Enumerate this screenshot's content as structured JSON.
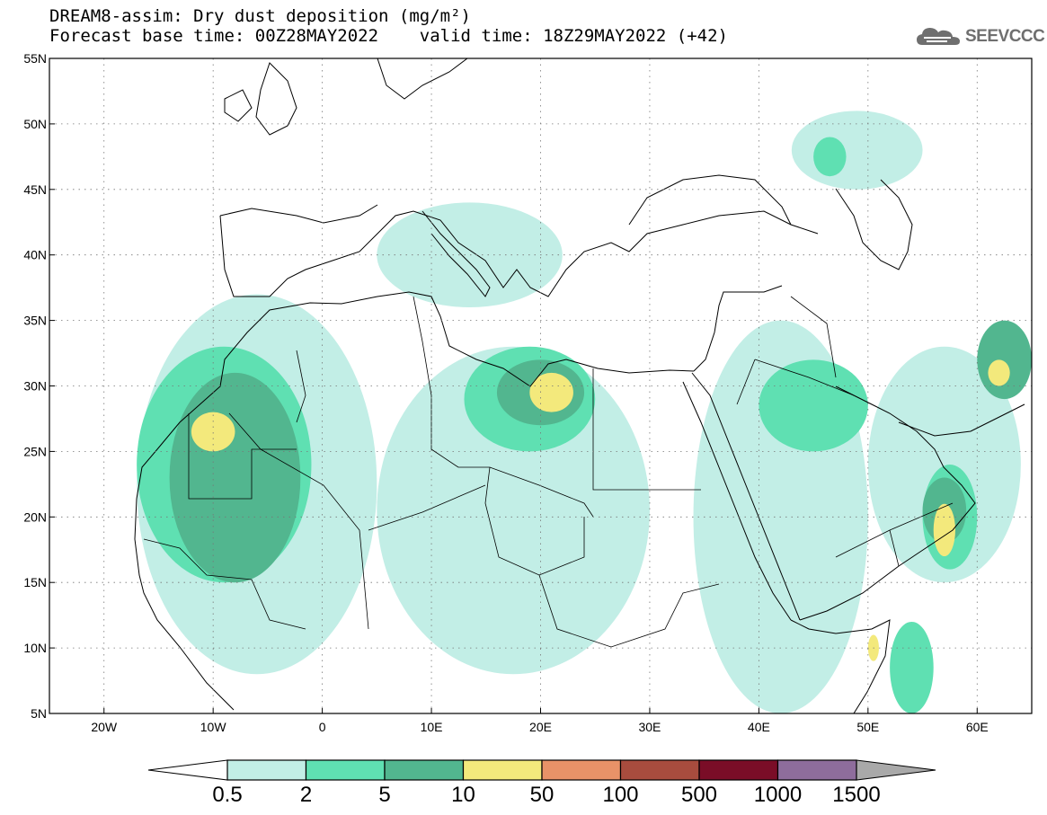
{
  "header": {
    "title_line1": "DREAM8-assim: Dry dust deposition (mg/m²)",
    "title_line2": "Forecast base time: 00Z28MAY2022    valid time: 18Z29MAY2022 (+42)",
    "logo_text": "SEEVCCC",
    "logo_icon": "cloud-icon"
  },
  "map": {
    "projection": "lat-lon",
    "lon_range": [
      -25,
      65
    ],
    "lat_range": [
      5,
      55
    ],
    "x_ticks": [
      {
        "lon": -20,
        "label": "20W"
      },
      {
        "lon": -10,
        "label": "10W"
      },
      {
        "lon": 0,
        "label": "0"
      },
      {
        "lon": 10,
        "label": "10E"
      },
      {
        "lon": 20,
        "label": "20E"
      },
      {
        "lon": 30,
        "label": "30E"
      },
      {
        "lon": 40,
        "label": "40E"
      },
      {
        "lon": 50,
        "label": "50E"
      },
      {
        "lon": 60,
        "label": "60E"
      }
    ],
    "y_ticks": [
      {
        "lat": 55,
        "label": "55N"
      },
      {
        "lat": 50,
        "label": "50N"
      },
      {
        "lat": 45,
        "label": "45N"
      },
      {
        "lat": 40,
        "label": "40N"
      },
      {
        "lat": 35,
        "label": "35N"
      },
      {
        "lat": 30,
        "label": "30N"
      },
      {
        "lat": 25,
        "label": "25N"
      },
      {
        "lat": 20,
        "label": "20N"
      },
      {
        "lat": 15,
        "label": "15N"
      },
      {
        "lat": 10,
        "label": "10N"
      },
      {
        "lat": 5,
        "label": "5N"
      }
    ],
    "grid": "dotted"
  },
  "colorbar": {
    "colors": [
      "#c2eee6",
      "#5fe0b2",
      "#52b68f",
      "#f3e97c",
      "#e89268",
      "#a84c3e",
      "#7a0d27",
      "#8e6d9c"
    ],
    "labels": [
      "0.5",
      "2",
      "5",
      "10",
      "50",
      "100",
      "500",
      "1000",
      "1500"
    ],
    "under_color": "#ffffff",
    "over_color": "#a9a9a9"
  },
  "chart_data": {
    "type": "heatmap",
    "title": "DREAM8-assim: Dry dust deposition (mg/m²)",
    "subtitle": "Forecast base time: 00Z28MAY2022    valid time: 18Z29MAY2022 (+42)",
    "levels": [
      0.5,
      2,
      5,
      10,
      50,
      100,
      500,
      1000,
      1500
    ],
    "xlim": [
      -25,
      65
    ],
    "ylim": [
      5,
      55
    ],
    "xlabel": "",
    "ylabel": "",
    "regions": [
      {
        "level_index": 0,
        "lon": [
          -17,
          5
        ],
        "lat": [
          8,
          37
        ]
      },
      {
        "level_index": 0,
        "lon": [
          5,
          30
        ],
        "lat": [
          8,
          33
        ]
      },
      {
        "level_index": 0,
        "lon": [
          34,
          50
        ],
        "lat": [
          5,
          35
        ]
      },
      {
        "level_index": 0,
        "lon": [
          50,
          64
        ],
        "lat": [
          15,
          33
        ]
      },
      {
        "level_index": 0,
        "lon": [
          5,
          22
        ],
        "lat": [
          36,
          44
        ]
      },
      {
        "level_index": 0,
        "lon": [
          43,
          55
        ],
        "lat": [
          45,
          51
        ]
      },
      {
        "level_index": 1,
        "lon": [
          -17,
          -1
        ],
        "lat": [
          15,
          33
        ]
      },
      {
        "level_index": 1,
        "lon": [
          13,
          25
        ],
        "lat": [
          25,
          33
        ]
      },
      {
        "level_index": 1,
        "lon": [
          40,
          50
        ],
        "lat": [
          25,
          32
        ]
      },
      {
        "level_index": 1,
        "lon": [
          55,
          60
        ],
        "lat": [
          16,
          24
        ]
      },
      {
        "level_index": 1,
        "lon": [
          52,
          56
        ],
        "lat": [
          5,
          12
        ]
      },
      {
        "level_index": 1,
        "lon": [
          45,
          48
        ],
        "lat": [
          46,
          49
        ]
      },
      {
        "level_index": 2,
        "lon": [
          -14,
          -2
        ],
        "lat": [
          15,
          31
        ]
      },
      {
        "level_index": 2,
        "lon": [
          16,
          24
        ],
        "lat": [
          27,
          32
        ]
      },
      {
        "level_index": 2,
        "lon": [
          60,
          65
        ],
        "lat": [
          29,
          35
        ]
      },
      {
        "level_index": 2,
        "lon": [
          55,
          59
        ],
        "lat": [
          18,
          23
        ]
      },
      {
        "level_index": 3,
        "lon": [
          -12,
          -8
        ],
        "lat": [
          25,
          28
        ]
      },
      {
        "level_index": 3,
        "lon": [
          19,
          23
        ],
        "lat": [
          28,
          31
        ]
      },
      {
        "level_index": 3,
        "lon": [
          56,
          58
        ],
        "lat": [
          17,
          21
        ]
      },
      {
        "level_index": 3,
        "lon": [
          61,
          63
        ],
        "lat": [
          30,
          32
        ]
      },
      {
        "level_index": 3,
        "lon": [
          50,
          51
        ],
        "lat": [
          9,
          11
        ]
      }
    ]
  }
}
